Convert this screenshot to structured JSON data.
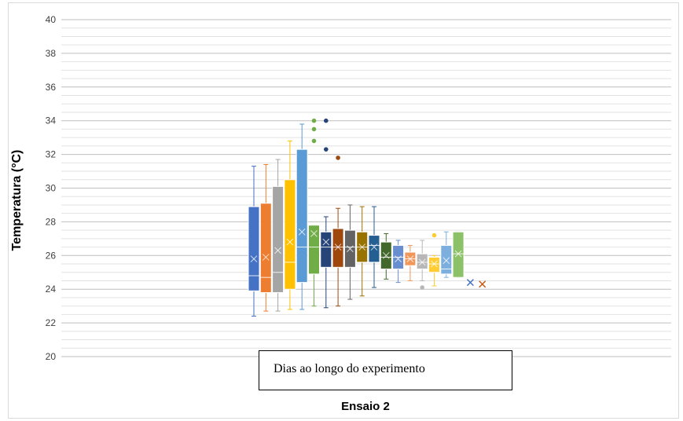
{
  "chart_data": {
    "type": "box",
    "title": "",
    "xlabel": "Ensaio 2",
    "ylabel": "Temperatura (°C)",
    "ylim": [
      20,
      40
    ],
    "yticks": [
      20,
      22,
      24,
      26,
      28,
      30,
      32,
      34,
      36,
      38,
      40
    ],
    "grid": true,
    "annotation": "Dias ao longo do experimento",
    "boxes": [
      {
        "color": "#4472C4",
        "min": 22.4,
        "q1": 23.9,
        "median": 24.8,
        "mean": 25.8,
        "q3": 28.9,
        "max": 31.3,
        "outliers": []
      },
      {
        "color": "#ED7D31",
        "min": 22.7,
        "q1": 23.8,
        "median": 24.7,
        "mean": 25.9,
        "q3": 29.1,
        "max": 31.4,
        "outliers": []
      },
      {
        "color": "#A5A5A5",
        "min": 22.7,
        "q1": 23.8,
        "median": 25.0,
        "mean": 26.3,
        "q3": 30.1,
        "max": 31.7,
        "outliers": []
      },
      {
        "color": "#FFC000",
        "min": 22.8,
        "q1": 24.0,
        "median": 25.6,
        "mean": 26.8,
        "q3": 30.5,
        "max": 32.8,
        "outliers": []
      },
      {
        "color": "#5B9BD5",
        "min": 22.8,
        "q1": 24.4,
        "median": 26.5,
        "mean": 27.4,
        "q3": 32.3,
        "max": 33.8,
        "outliers": []
      },
      {
        "color": "#70AD47",
        "min": 23.0,
        "q1": 24.9,
        "median": 26.5,
        "mean": 27.3,
        "q3": 27.8,
        "max": 27.8,
        "outliers": [
          32.8,
          33.5,
          34.0
        ]
      },
      {
        "color": "#264478",
        "min": 22.9,
        "q1": 25.3,
        "median": 26.5,
        "mean": 26.8,
        "q3": 27.4,
        "max": 28.3,
        "outliers": [
          32.3,
          34.0
        ]
      },
      {
        "color": "#9E480E",
        "min": 23.0,
        "q1": 25.3,
        "median": 26.5,
        "mean": 26.5,
        "q3": 27.6,
        "max": 28.8,
        "outliers": [
          31.8
        ]
      },
      {
        "color": "#636363",
        "min": 23.4,
        "q1": 25.3,
        "median": 26.5,
        "mean": 26.4,
        "q3": 27.5,
        "max": 29.0,
        "outliers": []
      },
      {
        "color": "#997300",
        "min": 23.6,
        "q1": 25.6,
        "median": 26.5,
        "mean": 26.5,
        "q3": 27.4,
        "max": 28.9,
        "outliers": []
      },
      {
        "color": "#255E91",
        "min": 24.1,
        "q1": 25.6,
        "median": 26.6,
        "mean": 26.5,
        "q3": 27.2,
        "max": 28.9,
        "outliers": []
      },
      {
        "color": "#43682B",
        "min": 24.6,
        "q1": 25.2,
        "median": 25.9,
        "mean": 26.0,
        "q3": 26.8,
        "max": 27.3,
        "outliers": []
      },
      {
        "color": "#698ED0",
        "min": 24.4,
        "q1": 25.2,
        "median": 25.9,
        "mean": 25.8,
        "q3": 26.6,
        "max": 26.9,
        "outliers": []
      },
      {
        "color": "#F1975A",
        "min": 24.5,
        "q1": 25.4,
        "median": 25.8,
        "mean": 25.8,
        "q3": 26.2,
        "max": 26.6,
        "outliers": []
      },
      {
        "color": "#B7B7B7",
        "min": 24.5,
        "q1": 25.2,
        "median": 25.6,
        "mean": 25.6,
        "q3": 26.1,
        "max": 26.9,
        "outliers": [
          24.1
        ]
      },
      {
        "color": "#FFCD33",
        "min": 24.2,
        "q1": 25.0,
        "median": 25.5,
        "mean": 25.5,
        "q3": 25.9,
        "max": 26.0,
        "outliers": [
          27.2
        ]
      },
      {
        "color": "#7CAFDD",
        "min": 24.7,
        "q1": 24.9,
        "median": 25.2,
        "mean": 25.7,
        "q3": 26.6,
        "max": 27.4,
        "outliers": []
      },
      {
        "color": "#8CC168",
        "min": 24.7,
        "q1": 24.7,
        "median": 26.1,
        "mean": 26.1,
        "q3": 27.4,
        "max": 27.4,
        "outliers": []
      },
      {
        "color": "#4472C4",
        "min": null,
        "q1": null,
        "median": null,
        "mean": 24.4,
        "q3": null,
        "max": null,
        "outliers": []
      },
      {
        "color": "#C55A11",
        "min": null,
        "q1": null,
        "median": null,
        "mean": 24.3,
        "q3": null,
        "max": null,
        "outliers": []
      }
    ]
  }
}
